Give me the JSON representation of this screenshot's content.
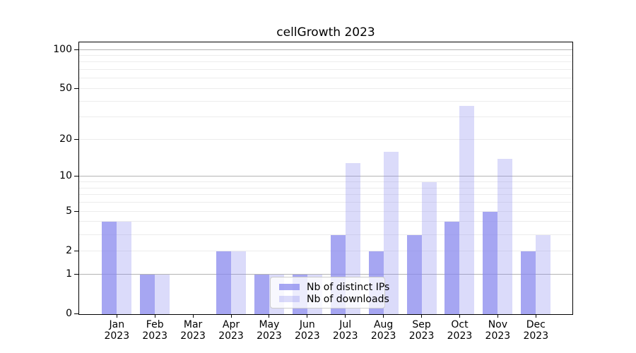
{
  "title": "cellGrowth 2023",
  "chart_data": {
    "type": "bar",
    "title": "cellGrowth 2023",
    "categories": [
      "Jan 2023",
      "Feb 2023",
      "Mar 2023",
      "Apr 2023",
      "May 2023",
      "Jun 2023",
      "Jul 2023",
      "Aug 2023",
      "Sep 2023",
      "Oct 2023",
      "Nov 2023",
      "Dec 2023"
    ],
    "series": [
      {
        "name": "Nb of distinct IPs",
        "values": [
          4,
          1,
          0,
          2,
          1,
          1,
          3,
          2,
          3,
          4,
          5,
          2
        ],
        "color": "rgba(136,136,238,0.75)"
      },
      {
        "name": "Nb of downloads",
        "values": [
          4,
          1,
          0,
          2,
          1,
          1,
          13,
          16,
          9,
          37,
          14,
          3
        ],
        "color": "rgba(136,136,238,0.3)"
      }
    ],
    "yscale": "log1p",
    "ylim": [
      0,
      100
    ],
    "ytick_values": [
      0,
      1,
      2,
      5,
      10,
      20,
      50,
      100
    ],
    "grid_minor_values": [
      2,
      3,
      4,
      5,
      6,
      7,
      8,
      9,
      20,
      30,
      40,
      50,
      60,
      70,
      80,
      90
    ],
    "grid_major_values": [
      1,
      10,
      100
    ],
    "grid_on": true,
    "legend_position": "lower center",
    "legend_labels": [
      "Nb of distinct IPs",
      "Nb of downloads"
    ]
  },
  "colors": {
    "bar_base": "#8888ee",
    "grid_minor": "#ececec",
    "grid_major": "#b4b4b4",
    "axis": "#000000",
    "legend_border": "#cccccc",
    "text": "#000000"
  }
}
